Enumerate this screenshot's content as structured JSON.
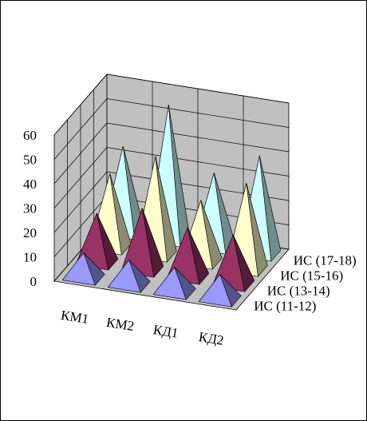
{
  "chart_data": {
    "type": "pyramid",
    "categories": [
      "КМ1",
      "КМ2",
      "КД1",
      "КД2"
    ],
    "series": [
      {
        "name": "ИС (11-12)",
        "color": "#9999ff",
        "values": [
          10,
          10,
          10,
          10
        ]
      },
      {
        "name": "ИС (13-14)",
        "color": "#993366",
        "values": [
          20,
          25,
          20,
          20
        ]
      },
      {
        "name": "ИС (15-16)",
        "color": "#ffffcc",
        "values": [
          30,
          40,
          25,
          35
        ]
      },
      {
        "name": "ИС (17-18)",
        "color": "#ccffff",
        "values": [
          35,
          55,
          30,
          40
        ]
      }
    ],
    "ylim": [
      0,
      60
    ],
    "yticks": [
      0,
      10,
      20,
      30,
      40,
      50,
      60
    ],
    "grid": true
  }
}
